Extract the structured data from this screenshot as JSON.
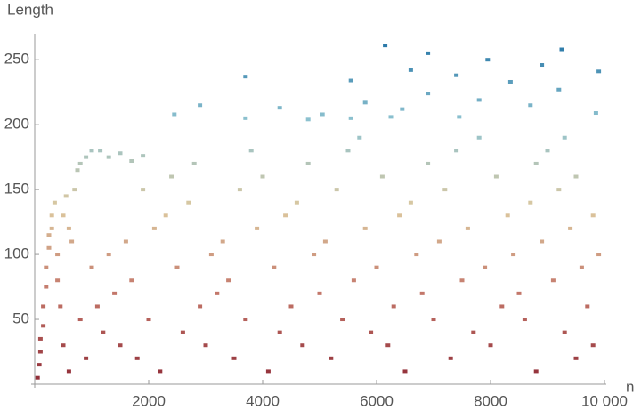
{
  "chart_data": {
    "type": "scatter",
    "ylabel": "Length",
    "xlabel": "n",
    "xlim": [
      0,
      10000
    ],
    "ylim": [
      0,
      270
    ],
    "xticks": [
      2000,
      4000,
      6000,
      8000,
      {
        "value": 10000,
        "label": "10 000"
      }
    ],
    "yticks": [
      50,
      100,
      150,
      200,
      250
    ],
    "colormap": [
      "#8e2a35",
      "#c27468",
      "#dcc79e",
      "#8fc3d0",
      "#1d6fa3"
    ],
    "x": [
      50,
      80,
      100,
      100,
      150,
      150,
      200,
      200,
      250,
      250,
      300,
      300,
      350,
      400,
      400,
      450,
      500,
      550,
      600,
      650,
      700,
      750,
      800,
      900,
      1000,
      1150,
      1300,
      1500,
      1700,
      1900,
      600,
      2200,
      4100,
      6500,
      8800,
      900,
      1800,
      3500,
      5200,
      7300,
      9500,
      500,
      1500,
      3000,
      4700,
      6200,
      8000,
      9800,
      1200,
      2600,
      4300,
      5900,
      7700,
      9300,
      800,
      2000,
      3700,
      5400,
      7000,
      8600,
      1100,
      2900,
      4500,
      6300,
      8200,
      9700,
      1400,
      3200,
      5000,
      6800,
      8500,
      1700,
      3400,
      5600,
      7500,
      9100,
      1000,
      2500,
      4200,
      6000,
      7900,
      9600,
      1300,
      3100,
      4900,
      6700,
      8400,
      9900,
      1600,
      3300,
      5100,
      7100,
      8900,
      2100,
      3900,
      5800,
      7600,
      9400,
      2300,
      4400,
      6400,
      8300,
      9800,
      2700,
      4600,
      6600,
      8700,
      1900,
      3600,
      5300,
      7200,
      9200,
      2400,
      4000,
      6100,
      8100,
      9500,
      2800,
      4800,
      6900,
      8800,
      3800,
      5500,
      7400,
      9000,
      5700,
      7800,
      9300,
      6150,
      9250,
      6900,
      7950,
      8900,
      9900,
      6600,
      3700,
      5550,
      7400,
      8350,
      6900,
      9200,
      7800,
      5800,
      2900,
      8700,
      4300,
      6450,
      2450,
      5050,
      4800,
      9850,
      7450,
      5550,
      6250,
      3700
    ],
    "y": [
      5,
      15,
      25,
      35,
      45,
      60,
      75,
      90,
      105,
      115,
      120,
      130,
      140,
      100,
      80,
      60,
      130,
      145,
      120,
      110,
      150,
      165,
      170,
      175,
      180,
      180,
      175,
      178,
      172,
      176,
      10,
      10,
      10,
      10,
      10,
      20,
      20,
      20,
      20,
      20,
      20,
      30,
      30,
      30,
      30,
      30,
      30,
      30,
      40,
      40,
      40,
      40,
      40,
      40,
      50,
      50,
      50,
      50,
      50,
      50,
      60,
      60,
      60,
      60,
      60,
      60,
      70,
      70,
      70,
      70,
      70,
      80,
      80,
      80,
      80,
      80,
      90,
      90,
      90,
      90,
      90,
      90,
      100,
      100,
      100,
      100,
      100,
      100,
      110,
      110,
      110,
      110,
      110,
      120,
      120,
      120,
      120,
      120,
      130,
      130,
      130,
      130,
      130,
      140,
      140,
      140,
      140,
      150,
      150,
      150,
      150,
      150,
      160,
      160,
      160,
      160,
      160,
      170,
      170,
      170,
      170,
      180,
      180,
      180,
      180,
      190,
      190,
      190,
      261,
      258,
      255,
      250,
      246,
      241,
      242,
      237,
      234,
      238,
      233,
      224,
      227,
      219,
      217,
      215,
      215,
      213,
      212,
      208,
      208,
      204,
      209,
      206,
      205,
      206,
      205
    ]
  }
}
